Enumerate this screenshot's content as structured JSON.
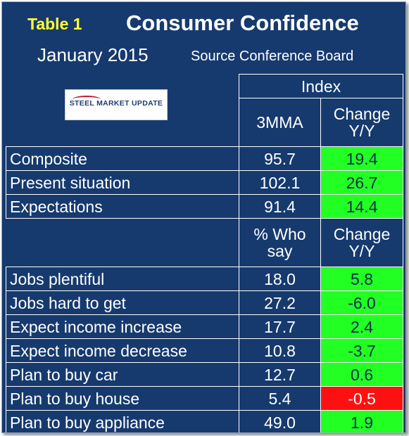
{
  "header": {
    "table_label": "Table 1",
    "title": "Consumer Confidence",
    "month": "January 2015",
    "source": "Source Conference Board"
  },
  "logo": {
    "text": "STEEL MARKET UPDATE"
  },
  "section1": {
    "group_label": "Index",
    "col1": "3MMA",
    "col2_line1": "Change",
    "col2_line2": "Y/Y",
    "rows": [
      {
        "label": "Composite",
        "value": "95.7",
        "change": "19.4",
        "status": "positive"
      },
      {
        "label": "Present situation",
        "value": "102.1",
        "change": "26.7",
        "status": "positive"
      },
      {
        "label": "Expectations",
        "value": "91.4",
        "change": "14.4",
        "status": "positive"
      }
    ]
  },
  "section2": {
    "col1_line1": "% Who",
    "col1_line2": "say",
    "col2_line1": "Change",
    "col2_line2": "Y/Y",
    "rows": [
      {
        "label": "Jobs plentiful",
        "value": "18.0",
        "change": "5.8",
        "status": "positive"
      },
      {
        "label": "Jobs hard to get",
        "value": "27.2",
        "change": "-6.0",
        "status": "positive"
      },
      {
        "label": "Expect income increase",
        "value": "17.7",
        "change": "2.4",
        "status": "positive"
      },
      {
        "label": "Expect income decrease",
        "value": "10.8",
        "change": "-3.7",
        "status": "positive"
      },
      {
        "label": "Plan to buy car",
        "value": "12.7",
        "change": "0.6",
        "status": "positive"
      },
      {
        "label": "Plan to buy house",
        "value": "5.4",
        "change": "-0.5",
        "status": "negative"
      },
      {
        "label": "Plan to buy appliance",
        "value": "49.0",
        "change": "1.9",
        "status": "positive"
      }
    ]
  },
  "colors": {
    "background": "#163a6e",
    "positive": "#22ff22",
    "negative": "#ff1010",
    "table_label": "#ffff33"
  }
}
